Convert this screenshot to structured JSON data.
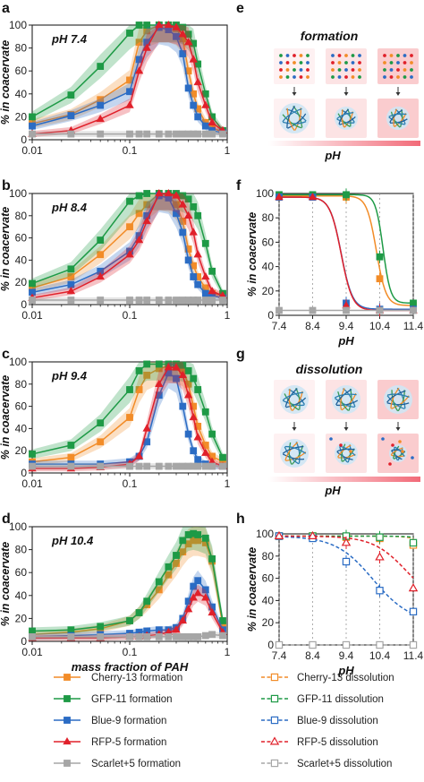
{
  "colors": {
    "cherry": "#f28c28",
    "gfp": "#1e9a46",
    "blue": "#2b6cc4",
    "rfp": "#e0202a",
    "scarlet": "#a6a6a6"
  },
  "panel_labels": [
    "a",
    "b",
    "c",
    "d",
    "e",
    "f",
    "g",
    "h"
  ],
  "schematics": {
    "formation_title": "formation",
    "dissolution_title": "dissolution",
    "ph_label": "pH"
  },
  "legend": {
    "formation": [
      "Cherry-13 formation",
      "GFP-11 formation",
      "Blue-9 formation",
      "RFP-5 formation",
      "Scarlet+5 formation"
    ],
    "dissolution": [
      "Cherry-13 dissolution",
      "GFP-11 dissolution",
      "Blue-9 dissolution",
      "RFP-5 dissolution",
      "Scarlet+5 dissolution"
    ]
  },
  "chart_data": [
    {
      "panel": "a",
      "type": "line",
      "annotation": "pH 7.4",
      "xlabel": "",
      "ylabel": "% in coacervate",
      "xscale": "log",
      "xlim": [
        0.01,
        1
      ],
      "ylim": [
        0,
        100
      ],
      "x_ticks": [
        "0.01",
        "0.1",
        "1"
      ],
      "y_ticks": [
        "0",
        "20",
        "40",
        "60",
        "80",
        "100"
      ],
      "reference_line": 100,
      "x": [
        0.01,
        0.025,
        0.05,
        0.1,
        0.125,
        0.15,
        0.2,
        0.25,
        0.3,
        0.35,
        0.4,
        0.45,
        0.5,
        0.6,
        0.7,
        0.9
      ],
      "series": [
        {
          "name": "Cherry-13 formation",
          "values": [
            14,
            22,
            35,
            52,
            85,
            95,
            100,
            100,
            97,
            88,
            60,
            40,
            27,
            15,
            10,
            7
          ]
        },
        {
          "name": "GFP-11 formation",
          "values": [
            20,
            39,
            64,
            93,
            100,
            100,
            100,
            100,
            100,
            98,
            92,
            84,
            66,
            40,
            20,
            8
          ]
        },
        {
          "name": "Blue-9 formation",
          "values": [
            12,
            21,
            30,
            42,
            70,
            85,
            98,
            96,
            90,
            75,
            45,
            30,
            20,
            12,
            8,
            6
          ]
        },
        {
          "name": "RFP-5 formation",
          "values": [
            5,
            8,
            18,
            30,
            60,
            80,
            100,
            100,
            98,
            92,
            85,
            70,
            50,
            30,
            15,
            8
          ]
        },
        {
          "name": "Scarlet+5 formation",
          "values": [
            5,
            5,
            5,
            5,
            5,
            5,
            5,
            5,
            5,
            5,
            5,
            5,
            5,
            5,
            5,
            5
          ]
        }
      ]
    },
    {
      "panel": "b",
      "type": "line",
      "annotation": "pH 8.4",
      "xlabel": "",
      "ylabel": "% in coacervate",
      "xscale": "log",
      "xlim": [
        0.01,
        1
      ],
      "ylim": [
        0,
        100
      ],
      "x_ticks": [
        "0.01",
        "0.1",
        "1"
      ],
      "y_ticks": [
        "0",
        "20",
        "40",
        "60",
        "80",
        "100"
      ],
      "reference_line": 100,
      "x": [
        0.01,
        0.025,
        0.05,
        0.1,
        0.125,
        0.15,
        0.2,
        0.25,
        0.3,
        0.35,
        0.4,
        0.45,
        0.5,
        0.6,
        0.7,
        0.9
      ],
      "series": [
        {
          "name": "Cherry-13 formation",
          "values": [
            15,
            25,
            45,
            70,
            82,
            90,
            100,
            98,
            90,
            75,
            50,
            35,
            25,
            15,
            10,
            8
          ]
        },
        {
          "name": "GFP-11 formation",
          "values": [
            19,
            32,
            58,
            93,
            98,
            100,
            100,
            100,
            100,
            98,
            95,
            88,
            80,
            55,
            30,
            10
          ]
        },
        {
          "name": "Blue-9 formation",
          "values": [
            11,
            18,
            30,
            48,
            62,
            80,
            98,
            96,
            82,
            65,
            40,
            25,
            18,
            10,
            8,
            6
          ]
        },
        {
          "name": "RFP-5 formation",
          "values": [
            6,
            12,
            25,
            45,
            58,
            75,
            100,
            100,
            98,
            90,
            80,
            65,
            45,
            25,
            12,
            8
          ]
        },
        {
          "name": "Scarlet+5 formation",
          "values": [
            4,
            4,
            4,
            4,
            4,
            4,
            4,
            4,
            4,
            4,
            4,
            4,
            4,
            4,
            4,
            4
          ]
        }
      ]
    },
    {
      "panel": "c",
      "type": "line",
      "annotation": "pH 9.4",
      "xlabel": "",
      "ylabel": "% in coacervate",
      "xscale": "log",
      "xlim": [
        0.01,
        1
      ],
      "ylim": [
        0,
        100
      ],
      "x_ticks": [
        "0.01",
        "0.1",
        "1"
      ],
      "y_ticks": [
        "0",
        "20",
        "40",
        "60",
        "80",
        "100"
      ],
      "reference_line": 100,
      "x": [
        0.01,
        0.025,
        0.05,
        0.1,
        0.125,
        0.15,
        0.2,
        0.25,
        0.3,
        0.35,
        0.4,
        0.45,
        0.5,
        0.6,
        0.7,
        0.9
      ],
      "series": [
        {
          "name": "Cherry-13 formation",
          "values": [
            10,
            14,
            28,
            50,
            75,
            88,
            94,
            96,
            95,
            92,
            80,
            60,
            42,
            25,
            15,
            10
          ]
        },
        {
          "name": "GFP-11 formation",
          "values": [
            17,
            25,
            45,
            75,
            92,
            98,
            98,
            98,
            98,
            97,
            92,
            85,
            75,
            55,
            35,
            14
          ]
        },
        {
          "name": "Blue-9 formation",
          "values": [
            8,
            8,
            8,
            10,
            15,
            28,
            70,
            90,
            85,
            60,
            35,
            20,
            12,
            8,
            6,
            6
          ]
        },
        {
          "name": "RFP-5 formation",
          "values": [
            4,
            4,
            5,
            8,
            15,
            40,
            80,
            95,
            95,
            88,
            70,
            50,
            32,
            18,
            10,
            6
          ]
        },
        {
          "name": "Scarlet+5 formation",
          "values": [
            6,
            6,
            6,
            6,
            6,
            6,
            6,
            6,
            6,
            6,
            6,
            6,
            6,
            6,
            6,
            6
          ]
        }
      ]
    },
    {
      "panel": "d",
      "type": "line",
      "annotation": "pH 10.4",
      "xlabel": "mass fraction of PAH",
      "ylabel": "% in coacervate",
      "xscale": "log",
      "xlim": [
        0.01,
        1
      ],
      "ylim": [
        0,
        100
      ],
      "x_ticks": [
        "0.01",
        "0.1",
        "1"
      ],
      "y_ticks": [
        "0",
        "20",
        "40",
        "60",
        "80",
        "100"
      ],
      "reference_line": 100,
      "x": [
        0.01,
        0.025,
        0.05,
        0.1,
        0.125,
        0.15,
        0.2,
        0.25,
        0.3,
        0.35,
        0.4,
        0.45,
        0.5,
        0.6,
        0.7,
        0.9
      ],
      "series": [
        {
          "name": "Cherry-13 formation",
          "values": [
            6,
            8,
            11,
            18,
            25,
            32,
            45,
            58,
            68,
            78,
            85,
            88,
            88,
            86,
            70,
            14
          ]
        },
        {
          "name": "GFP-11 formation",
          "values": [
            9,
            10,
            13,
            18,
            25,
            35,
            52,
            65,
            75,
            88,
            93,
            94,
            93,
            90,
            72,
            18
          ]
        },
        {
          "name": "Blue-9 formation",
          "values": [
            4,
            5,
            6,
            7,
            8,
            9,
            10,
            10,
            12,
            20,
            35,
            48,
            53,
            45,
            30,
            10
          ]
        },
        {
          "name": "RFP-5 formation",
          "values": [
            3,
            3,
            3,
            4,
            4,
            5,
            6,
            8,
            10,
            18,
            28,
            38,
            42,
            38,
            25,
            8
          ]
        },
        {
          "name": "Scarlet+5 formation",
          "values": [
            4,
            4,
            4,
            4,
            4,
            4,
            4,
            4,
            4,
            4,
            4,
            4,
            4,
            5,
            6,
            5
          ]
        }
      ]
    },
    {
      "panel": "f",
      "type": "line",
      "annotation": "",
      "xlabel": "pH",
      "ylabel": "% in coacervate",
      "xlim": [
        7.4,
        11.4
      ],
      "ylim": [
        0,
        100
      ],
      "x_ticks": [
        "7.4",
        "8.4",
        "9.4",
        "10.4",
        "11.4"
      ],
      "y_ticks": [
        "0",
        "20",
        "40",
        "60",
        "80",
        "100"
      ],
      "x": [
        7.4,
        8.4,
        9.4,
        10.4,
        11.4
      ],
      "series": [
        {
          "name": "Cherry-13 formation",
          "values": [
            98,
            98,
            97,
            30,
            8
          ]
        },
        {
          "name": "GFP-11 formation",
          "values": [
            99,
            99,
            99,
            48,
            10
          ]
        },
        {
          "name": "Blue-9 formation",
          "values": [
            97,
            97,
            10,
            5,
            5
          ]
        },
        {
          "name": "RFP-5 formation",
          "values": [
            97,
            97,
            8,
            4,
            4
          ]
        },
        {
          "name": "Scarlet+5 formation",
          "values": [
            4,
            4,
            4,
            4,
            4
          ]
        }
      ]
    },
    {
      "panel": "h",
      "type": "line",
      "annotation": "",
      "xlabel": "pH",
      "ylabel": "% in coacervate",
      "xlim": [
        7.4,
        11.4
      ],
      "ylim": [
        0,
        100
      ],
      "x_ticks": [
        "7.4",
        "8.4",
        "9.4",
        "10.4",
        "11.4"
      ],
      "y_ticks": [
        "0",
        "20",
        "40",
        "60",
        "80",
        "100"
      ],
      "x": [
        7.4,
        8.4,
        9.4,
        10.4,
        11.4
      ],
      "series": [
        {
          "name": "Cherry-13 dissolution",
          "values": [
            98,
            98,
            97,
            96,
            90
          ]
        },
        {
          "name": "GFP-11 dissolution",
          "values": [
            98,
            98,
            98,
            97,
            92
          ]
        },
        {
          "name": "Blue-9 dissolution",
          "values": [
            98,
            96,
            75,
            49,
            30
          ]
        },
        {
          "name": "RFP-5 dissolution",
          "values": [
            98,
            98,
            92,
            79,
            51
          ]
        },
        {
          "name": "Scarlet+5 dissolution",
          "values": [
            0,
            0,
            0,
            0,
            0
          ]
        }
      ]
    }
  ]
}
